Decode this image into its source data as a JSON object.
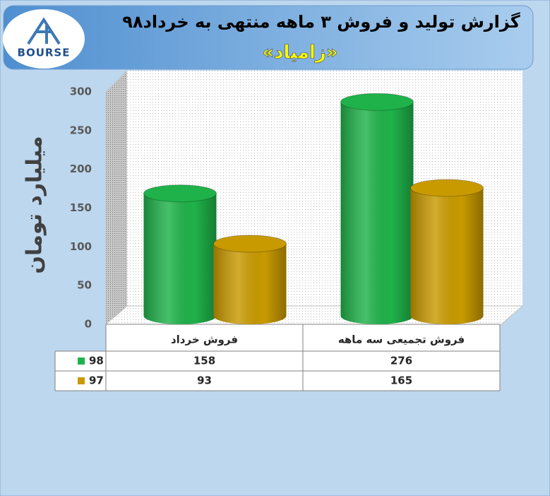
{
  "logo": {
    "text": "BOURSE"
  },
  "chart_data": {
    "type": "bar",
    "title": "گزارش تولید و فروش ۳ ماهه منتهی به خرداد۹۸",
    "subtitle": "«زامیاد»",
    "y_label": "میلیارد تومان",
    "categories": [
      "فروش خرداد",
      "فروش تجمیعی سه ماهه"
    ],
    "series": [
      {
        "name": "98",
        "color": "#1fb24a",
        "values": [
          158,
          276
        ]
      },
      {
        "name": "97",
        "color": "#c99a00",
        "values": [
          93,
          165
        ]
      }
    ],
    "ylim": [
      0,
      300
    ],
    "yticks": [
      0,
      50,
      100,
      150,
      200,
      250,
      300
    ],
    "grid": false
  }
}
